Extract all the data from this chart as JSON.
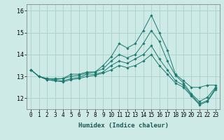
{
  "xlabel": "Humidex (Indice chaleur)",
  "background_color": "#ceeae6",
  "grid_color": "#aacfcb",
  "line_color": "#1a7a6e",
  "xlim": [
    -0.5,
    23.5
  ],
  "ylim": [
    11.5,
    16.3
  ],
  "yticks": [
    12,
    13,
    14,
    15,
    16
  ],
  "xticks": [
    0,
    1,
    2,
    3,
    4,
    5,
    6,
    7,
    8,
    9,
    10,
    11,
    12,
    13,
    14,
    15,
    16,
    17,
    18,
    19,
    20,
    21,
    22,
    23
  ],
  "series": [
    [
      13.3,
      13.0,
      12.9,
      12.9,
      12.9,
      13.1,
      13.1,
      13.2,
      13.2,
      13.5,
      13.9,
      14.5,
      14.3,
      14.5,
      15.1,
      15.8,
      15.0,
      14.2,
      13.1,
      12.8,
      12.5,
      12.5,
      12.6,
      12.6
    ],
    [
      13.3,
      13.0,
      12.9,
      12.85,
      12.9,
      13.0,
      13.05,
      13.15,
      13.2,
      13.35,
      13.7,
      14.0,
      13.85,
      14.0,
      14.5,
      15.1,
      14.6,
      13.7,
      13.05,
      12.7,
      12.2,
      11.85,
      12.05,
      12.5
    ],
    [
      13.3,
      13.0,
      12.85,
      12.8,
      12.8,
      12.9,
      12.95,
      13.1,
      13.1,
      13.2,
      13.5,
      13.7,
      13.6,
      13.8,
      14.0,
      14.4,
      13.8,
      13.3,
      12.8,
      12.6,
      12.15,
      11.75,
      11.9,
      12.45
    ],
    [
      13.3,
      13.0,
      12.85,
      12.8,
      12.75,
      12.85,
      12.9,
      13.0,
      13.05,
      13.15,
      13.3,
      13.5,
      13.4,
      13.5,
      13.7,
      14.0,
      13.5,
      13.1,
      12.7,
      12.5,
      12.1,
      11.7,
      11.85,
      12.4
    ]
  ],
  "marker": "D",
  "markersize": 1.8,
  "linewidth": 0.7,
  "tick_fontsize": 5.5,
  "xlabel_fontsize": 6.5
}
